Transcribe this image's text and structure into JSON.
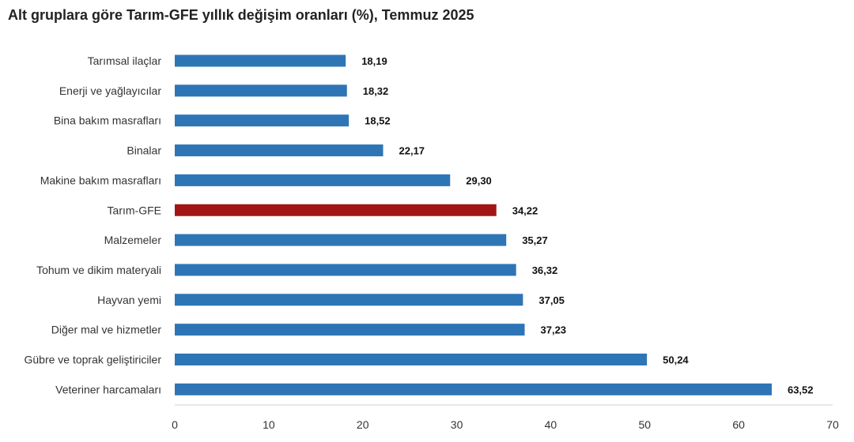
{
  "chart_data": {
    "type": "bar",
    "orientation": "horizontal",
    "title": "Alt gruplara göre Tarım-GFE yıllık değişim oranları (%), Temmuz 2025",
    "categories": [
      "Tarımsal ilaçlar",
      "Enerji  ve yağlayıcılar",
      "Bina bakım masrafları",
      "Binalar",
      "Makine bakım masrafları",
      "Tarım-GFE",
      "Malzemeler",
      "Tohum ve dikim materyali",
      "Hayvan yemi",
      "Diğer mal ve hizmetler",
      "Gübre ve toprak geliştiriciler",
      "Veteriner harcamaları"
    ],
    "values": [
      18.19,
      18.32,
      18.52,
      22.17,
      29.3,
      34.22,
      35.27,
      36.32,
      37.05,
      37.23,
      50.24,
      63.52
    ],
    "value_labels": [
      "18,19",
      "18,32",
      "18,52",
      "22,17",
      "29,30",
      "34,22",
      "35,27",
      "36,32",
      "37,05",
      "37,23",
      "50,24",
      "63,52"
    ],
    "xlim": [
      0,
      70
    ],
    "xticks": [
      0,
      10,
      20,
      30,
      40,
      50,
      60,
      70
    ],
    "grid": false,
    "legend": "none",
    "colors": {
      "default": "#2E75B6",
      "highlight": "#A31515",
      "highlight_category": "Tarım-GFE"
    }
  }
}
